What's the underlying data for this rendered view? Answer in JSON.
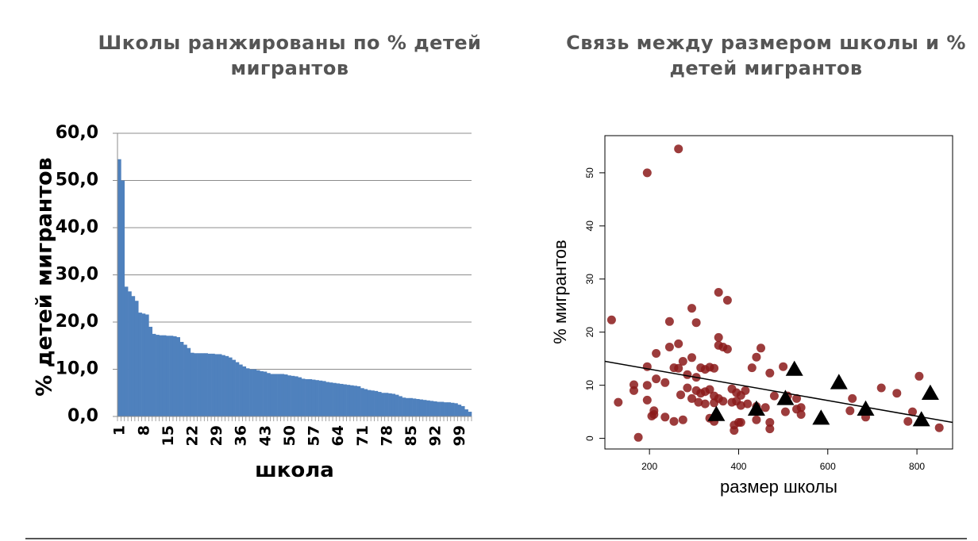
{
  "chart_data": [
    {
      "type": "bar",
      "title": "Школы ранжированы по % детей мигрантов",
      "xlabel": "школа",
      "ylabel": "% детей мигрантов",
      "ylim": [
        0,
        60
      ],
      "ytick_labels": [
        "0,0",
        "10,0",
        "20,0",
        "30,0",
        "40,0",
        "50,0",
        "60,0"
      ],
      "xtick_labels": [
        "1",
        "8",
        "15",
        "22",
        "29",
        "36",
        "43",
        "50",
        "57",
        "64",
        "71",
        "78",
        "85",
        "92",
        "99"
      ],
      "grid": true,
      "bar_color": "#4f81bd",
      "values": [
        54.5,
        50.0,
        27.5,
        26.5,
        25.5,
        24.5,
        22.0,
        21.8,
        21.6,
        19.0,
        17.5,
        17.3,
        17.2,
        17.2,
        17.1,
        17.1,
        17.0,
        16.8,
        15.8,
        15.2,
        14.5,
        13.5,
        13.4,
        13.4,
        13.4,
        13.4,
        13.3,
        13.3,
        13.2,
        13.2,
        13.0,
        12.8,
        12.5,
        12.0,
        11.5,
        11.0,
        10.6,
        10.2,
        10.0,
        10.0,
        9.8,
        9.6,
        9.5,
        9.2,
        9.0,
        9.0,
        9.0,
        9.0,
        8.9,
        8.7,
        8.6,
        8.5,
        8.3,
        8.0,
        7.9,
        7.9,
        7.8,
        7.7,
        7.6,
        7.5,
        7.3,
        7.2,
        7.1,
        7.0,
        6.9,
        6.8,
        6.7,
        6.6,
        6.5,
        6.4,
        6.0,
        5.8,
        5.6,
        5.5,
        5.4,
        5.2,
        5.0,
        5.0,
        4.9,
        4.8,
        4.6,
        4.3,
        4.0,
        3.9,
        3.9,
        3.8,
        3.7,
        3.6,
        3.5,
        3.4,
        3.3,
        3.2,
        3.1,
        3.1,
        3.0,
        3.0,
        2.9,
        2.8,
        2.5,
        2.2,
        1.5,
        1.0
      ]
    },
    {
      "type": "scatter",
      "title": "Связь между размером школы и % детей мигрантов",
      "xlabel": "размер школы",
      "ylabel": "% мигрантов",
      "xlim": [
        100,
        880
      ],
      "ylim": [
        -2,
        57
      ],
      "xtick_labels": [
        "200",
        "400",
        "600",
        "800"
      ],
      "ytick_labels": [
        "0",
        "10",
        "20",
        "30",
        "40",
        "50"
      ],
      "xticks": [
        200,
        400,
        600,
        800
      ],
      "yticks": [
        0,
        10,
        20,
        30,
        40,
        50
      ],
      "grid": false,
      "point_color": "#8b1a1a",
      "triangle_color": "#000000",
      "circles": [
        [
          265,
          54.5
        ],
        [
          195,
          50
        ],
        [
          355,
          27.5
        ],
        [
          375,
          26
        ],
        [
          295,
          24.5
        ],
        [
          115,
          22.3
        ],
        [
          245,
          22
        ],
        [
          305,
          21.8
        ],
        [
          355,
          19
        ],
        [
          245,
          17.2
        ],
        [
          265,
          17.8
        ],
        [
          355,
          17.5
        ],
        [
          365,
          17.2
        ],
        [
          375,
          16.8
        ],
        [
          450,
          17
        ],
        [
          215,
          16
        ],
        [
          440,
          15.3
        ],
        [
          295,
          15.2
        ],
        [
          275,
          14.5
        ],
        [
          195,
          13.5
        ],
        [
          255,
          13.3
        ],
        [
          265,
          13.2
        ],
        [
          315,
          13.3
        ],
        [
          325,
          13
        ],
        [
          335,
          13.4
        ],
        [
          345,
          13.2
        ],
        [
          430,
          13.3
        ],
        [
          500,
          13.5
        ],
        [
          470,
          12.3
        ],
        [
          285,
          12
        ],
        [
          305,
          11.5
        ],
        [
          215,
          11.2
        ],
        [
          805,
          11.7
        ],
        [
          195,
          10
        ],
        [
          165,
          10.1
        ],
        [
          235,
          10.5
        ],
        [
          165,
          9
        ],
        [
          720,
          9.5
        ],
        [
          755,
          8.5
        ],
        [
          285,
          9.5
        ],
        [
          305,
          9
        ],
        [
          315,
          8.5
        ],
        [
          325,
          8.8
        ],
        [
          335,
          9.2
        ],
        [
          345,
          8
        ],
        [
          355,
          7.5
        ],
        [
          385,
          9.3
        ],
        [
          395,
          8.6
        ],
        [
          405,
          8.1
        ],
        [
          415,
          9
        ],
        [
          480,
          8
        ],
        [
          510,
          8
        ],
        [
          530,
          7.5
        ],
        [
          270,
          8.2
        ],
        [
          295,
          7.5
        ],
        [
          195,
          7.2
        ],
        [
          130,
          6.8
        ],
        [
          310,
          6.8
        ],
        [
          325,
          6.5
        ],
        [
          345,
          6.7
        ],
        [
          365,
          7
        ],
        [
          385,
          6.8
        ],
        [
          395,
          7
        ],
        [
          405,
          6.2
        ],
        [
          420,
          6.5
        ],
        [
          440,
          6
        ],
        [
          460,
          5.8
        ],
        [
          530,
          5.5
        ],
        [
          540,
          5.8
        ],
        [
          655,
          7.5
        ],
        [
          210,
          5.2
        ],
        [
          210,
          4.5
        ],
        [
          205,
          4.2
        ],
        [
          235,
          4
        ],
        [
          255,
          3.2
        ],
        [
          275,
          3.5
        ],
        [
          335,
          3.8
        ],
        [
          345,
          3.2
        ],
        [
          390,
          2.5
        ],
        [
          400,
          3
        ],
        [
          440,
          3.5
        ],
        [
          470,
          3
        ],
        [
          505,
          5
        ],
        [
          540,
          4.5
        ],
        [
          650,
          5.2
        ],
        [
          685,
          4
        ],
        [
          790,
          5
        ],
        [
          780,
          3.2
        ],
        [
          405,
          3
        ],
        [
          390,
          1.5
        ],
        [
          470,
          1.8
        ],
        [
          850,
          2
        ],
        [
          175,
          0.2
        ]
      ],
      "triangles": [
        [
          350,
          4.5
        ],
        [
          440,
          5.5
        ],
        [
          505,
          7.5
        ],
        [
          525,
          13
        ],
        [
          585,
          3.8
        ],
        [
          625,
          10.5
        ],
        [
          685,
          5.5
        ],
        [
          810,
          3.5
        ],
        [
          830,
          8.5
        ]
      ],
      "trend_line": [
        [
          100,
          14.5
        ],
        [
          880,
          3
        ]
      ]
    }
  ]
}
